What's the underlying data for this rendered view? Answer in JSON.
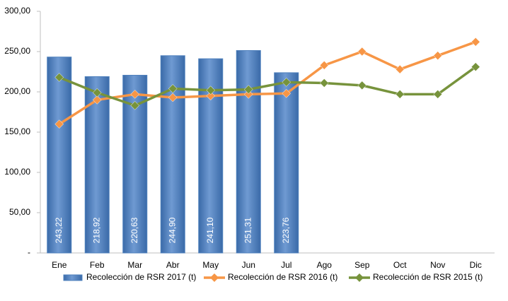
{
  "chart_data": {
    "type": "bar",
    "categories": [
      "Ene",
      "Feb",
      "Mar",
      "Abr",
      "May",
      "Jun",
      "Jul",
      "Ago",
      "Sep",
      "Oct",
      "Nov",
      "Dic"
    ],
    "series": [
      {
        "name": "Recolección de RSR 2017 (t)",
        "type": "bar",
        "color": "#4f81bd",
        "values": [
          243.22,
          218.92,
          220.63,
          244.9,
          241.1,
          251.31,
          223.76,
          null,
          null,
          null,
          null,
          null
        ],
        "value_labels": [
          "243,22",
          "218,92",
          "220,63",
          "244,90",
          "241,10",
          "251,31",
          "223,76",
          null,
          null,
          null,
          null,
          null
        ]
      },
      {
        "name": "Recolección de RSR 2016 (t)",
        "type": "line",
        "color": "#f79646",
        "values": [
          160,
          190,
          197,
          193,
          195,
          197,
          198,
          233,
          250,
          228,
          245,
          262
        ]
      },
      {
        "name": "Recolección de RSR 2015 (t)",
        "type": "line",
        "color": "#77933c",
        "values": [
          218,
          199,
          183,
          204,
          202,
          203,
          212,
          211,
          208,
          197,
          197,
          231
        ]
      }
    ],
    "ylim": [
      0,
      300
    ],
    "yticks": [
      {
        "value": 0,
        "label": "-"
      },
      {
        "value": 50,
        "label": "50,00"
      },
      {
        "value": 100,
        "label": "100,00"
      },
      {
        "value": 150,
        "label": "150,00"
      },
      {
        "value": 200,
        "label": "200,00"
      },
      {
        "value": 250,
        "label": "250,00"
      },
      {
        "value": 300,
        "label": "300,00"
      }
    ],
    "grid": false
  }
}
